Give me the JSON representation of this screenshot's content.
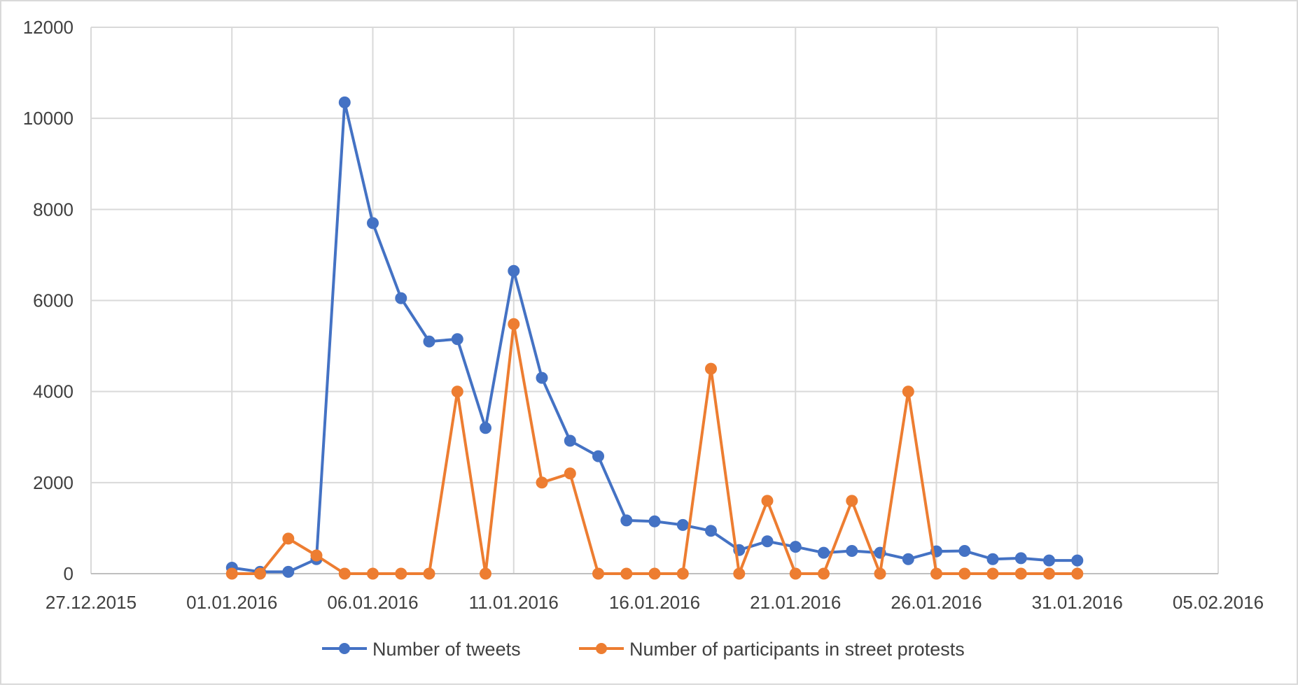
{
  "chart_data": {
    "type": "line",
    "title": "",
    "xlabel": "",
    "ylabel": "",
    "x_axis": {
      "type": "date",
      "range": [
        "27.12.2015",
        "05.02.2016"
      ],
      "tick_labels": [
        "27.12.2015",
        "01.01.2016",
        "06.01.2016",
        "11.01.2016",
        "16.01.2016",
        "21.01.2016",
        "26.01.2016",
        "31.01.2016",
        "05.02.2016"
      ]
    },
    "y_axis": {
      "range": [
        0,
        12000
      ],
      "tick_labels": [
        "0",
        "2000",
        "4000",
        "6000",
        "8000",
        "10000",
        "12000"
      ]
    },
    "grid": true,
    "legend_position": "bottom",
    "x": [
      "01.01.2016",
      "02.01.2016",
      "03.01.2016",
      "04.01.2016",
      "05.01.2016",
      "06.01.2016",
      "07.01.2016",
      "08.01.2016",
      "09.01.2016",
      "10.01.2016",
      "11.01.2016",
      "12.01.2016",
      "13.01.2016",
      "14.01.2016",
      "15.01.2016",
      "16.01.2016",
      "17.01.2016",
      "18.01.2016",
      "19.01.2016",
      "20.01.2016",
      "21.01.2016",
      "22.01.2016",
      "23.01.2016",
      "24.01.2016",
      "25.01.2016",
      "26.01.2016",
      "27.01.2016",
      "28.01.2016",
      "29.01.2016",
      "30.01.2016",
      "31.01.2016"
    ],
    "series": [
      {
        "name": "Number of tweets",
        "color": "#4472c4",
        "values": [
          130,
          40,
          40,
          320,
          10350,
          7700,
          6050,
          5100,
          5150,
          3200,
          6650,
          4300,
          2920,
          2580,
          1170,
          1150,
          1070,
          940,
          520,
          710,
          590,
          460,
          500,
          460,
          320,
          490,
          500,
          320,
          340,
          290,
          290
        ]
      },
      {
        "name": "Number of participants in street protests",
        "color": "#ed7d31",
        "values": [
          0,
          0,
          770,
          400,
          0,
          0,
          0,
          0,
          4000,
          0,
          5480,
          2000,
          2200,
          0,
          0,
          0,
          0,
          4500,
          0,
          1600,
          0,
          0,
          1600,
          0,
          4000,
          0,
          0,
          0,
          0,
          0,
          0
        ]
      }
    ]
  }
}
